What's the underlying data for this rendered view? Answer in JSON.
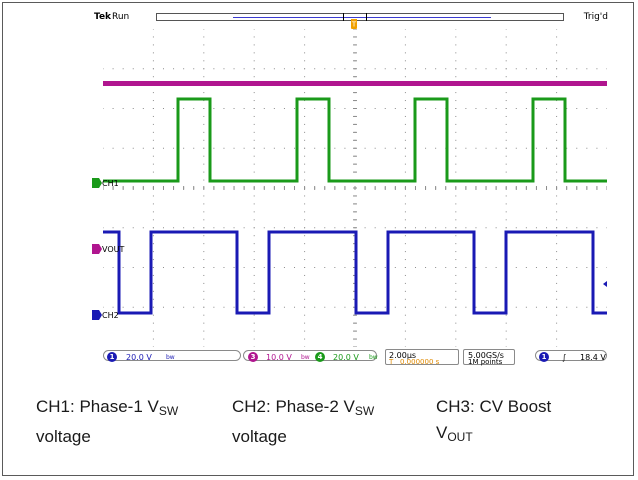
{
  "scope": {
    "brand": "Tek",
    "run_state": "Run",
    "trigger_state": "Trig'd",
    "trigger_marker": "T",
    "channel_markers": {
      "ch1": "CH1",
      "vout": "VOUT",
      "ch2": "CH2"
    },
    "status": {
      "ch1_num": "1",
      "ch1_scale": "20.0 V",
      "ch1_bw": "bw",
      "ch3_num": "3",
      "ch3_scale": "10.0 V",
      "ch3_bw": "bw",
      "ch4_num": "4",
      "ch4_scale": "20.0 V",
      "ch4_bw": "bw",
      "timebase": "2.00µs",
      "position_prefix": "T",
      "position": "0.000000 s",
      "sample_rate": "5.00GS/s",
      "record_length": "1M points",
      "trig_source": "1",
      "trig_slope": "∫",
      "trig_level": "18.4 V"
    },
    "colors": {
      "ch1": "#1a9a1a",
      "ch2": "#1a1ab4",
      "ch3": "#b0158f",
      "trigger": "#f0a000",
      "grid": "#8c8c8c"
    }
  },
  "captions": [
    {
      "line1_main": "CH1: Phase-1 V",
      "line1_sub": "SW",
      "line2_main": "voltage",
      "line2_sub": ""
    },
    {
      "line1_main": "CH2: Phase-2 V",
      "line1_sub": "SW",
      "line2_main": "voltage",
      "line2_sub": ""
    },
    {
      "line1_main": "CH3: CV Boost",
      "line1_sub": "",
      "line2_main": "V",
      "line2_sub": "OUT"
    }
  ]
}
